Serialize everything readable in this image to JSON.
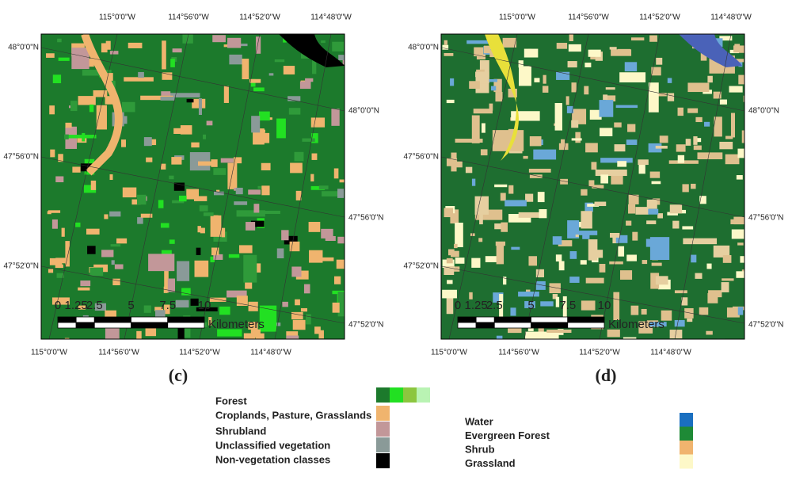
{
  "panels": [
    {
      "label": "(c)",
      "top_labels": [
        "115°0'0\"W",
        "114°56'0\"W",
        "114°52'0\"W",
        "114°48'0\"W"
      ],
      "bottom_labels": [
        "115°0'0\"W",
        "114°56'0\"W",
        "114°52'0\"W",
        "114°48'0\"W"
      ],
      "left_labels": [
        "48°0'0\"N",
        "47°56'0\"N",
        "47°52'0\"N"
      ],
      "right_labels": [
        "48°0'0\"N",
        "47°56'0\"N",
        "47°52'0\"N"
      ],
      "scale_ticks": [
        "0",
        "1.25",
        "2.5",
        "5",
        "7.5",
        "10"
      ],
      "scale_unit": "Kilometers"
    },
    {
      "label": "(d)",
      "top_labels": [
        "115°0'0\"W",
        "114°56'0\"W",
        "114°52'0\"W",
        "114°48'0\"W"
      ],
      "bottom_labels": [
        "115°0'0\"W",
        "114°56'0\"W",
        "114°52'0\"W",
        "114°48'0\"W"
      ],
      "left_labels": [
        "48°0'0\"N",
        "47°56'0\"N",
        "47°52'0\"N"
      ],
      "right_labels": [
        "48°0'0\"N",
        "47°56'0\"N",
        "47°52'0\"N"
      ],
      "scale_ticks": [
        "0",
        "1.25",
        "2.5",
        "5",
        "7.5",
        "10"
      ],
      "scale_unit": "Kilometers"
    }
  ],
  "legend_c": [
    {
      "label": "Forest",
      "colors": [
        "#1c7a2c",
        "#22e022",
        "#8cc63f",
        "#b9f3b3"
      ]
    },
    {
      "label": "Croplands, Pasture, Grasslands",
      "colors": [
        "#f0b46e"
      ]
    },
    {
      "label": "Shrubland",
      "colors": [
        "#c29799"
      ]
    },
    {
      "label": "Unclassified vegetation",
      "colors": [
        "#8a9a98"
      ]
    },
    {
      "label": "Non-vegetation classes",
      "colors": [
        "#000000"
      ]
    }
  ],
  "legend_d": [
    {
      "label": "Water",
      "colors": [
        "#1a6fc0"
      ]
    },
    {
      "label": "Evergreen Forest",
      "colors": [
        "#1e8a36"
      ]
    },
    {
      "label": "Shrub",
      "colors": [
        "#f0b46e"
      ]
    },
    {
      "label": "Grassland",
      "colors": [
        "#fdf8c8"
      ]
    }
  ]
}
